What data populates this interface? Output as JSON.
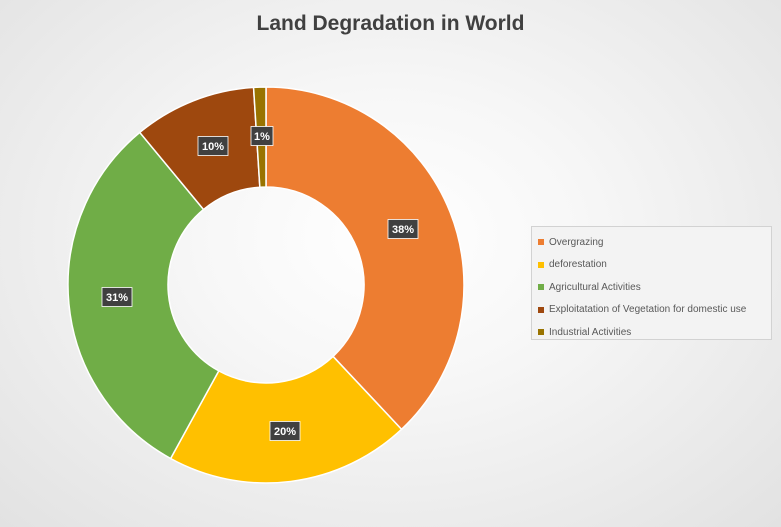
{
  "colors": {
    "overgrazing": "#ed7d31",
    "deforestation": "#ffc000",
    "agricultural": "#70ad47",
    "exploitation": "#9e480e",
    "industrial": "#997300",
    "label_bg": "#404040",
    "label_text": "#ffffff"
  },
  "chart_data": {
    "type": "pie",
    "title": "Land Degradation in World",
    "donut": true,
    "legend_position": "right",
    "categories": [
      "Overgrazing",
      "deforestation",
      "Agricultural Activities",
      "Exploitatation of Vegetation for domestic use",
      "Industrial Activities"
    ],
    "values": [
      38,
      20,
      31,
      10,
      1
    ],
    "labels": [
      "38%",
      "20%",
      "31%",
      "10%",
      "1%"
    ]
  }
}
